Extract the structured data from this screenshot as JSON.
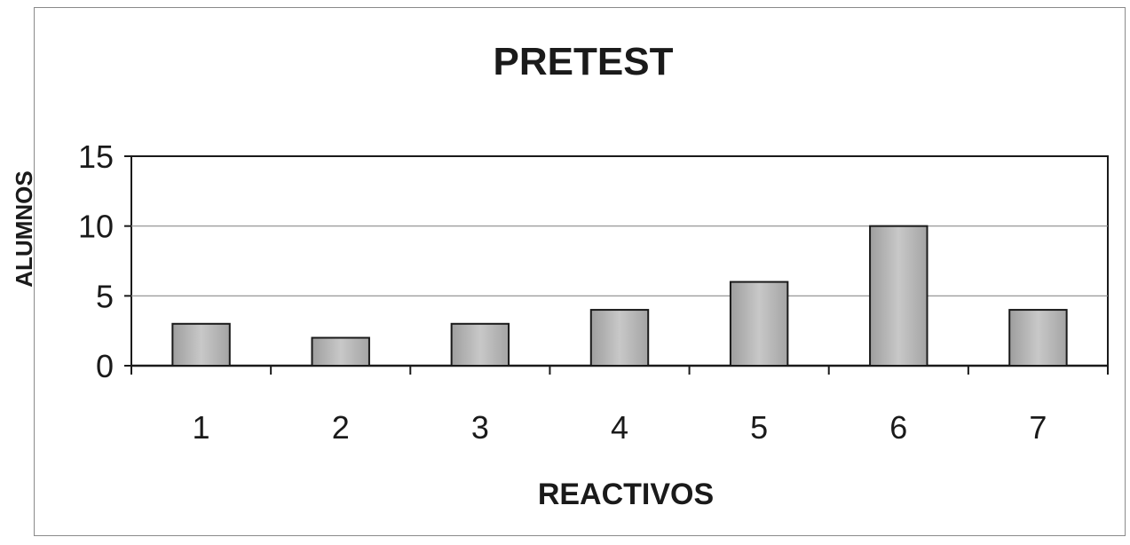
{
  "chart_data": {
    "type": "bar",
    "title": "PRETEST",
    "xlabel": "REACTIVOS",
    "ylabel": "ALUMNOS",
    "categories": [
      "1",
      "2",
      "3",
      "4",
      "5",
      "6",
      "7"
    ],
    "values": [
      3,
      2,
      3,
      4,
      6,
      10,
      4
    ],
    "yticks": [
      "0",
      "5",
      "10",
      "15"
    ],
    "ylim": [
      0,
      15
    ],
    "grid": true,
    "legend": "none",
    "colors": {
      "bar_fill": "#b8b8b8",
      "bar_stroke": "#1a1a1a",
      "gridline": "#8c8c8c",
      "axis": "#1a1a1a"
    }
  }
}
